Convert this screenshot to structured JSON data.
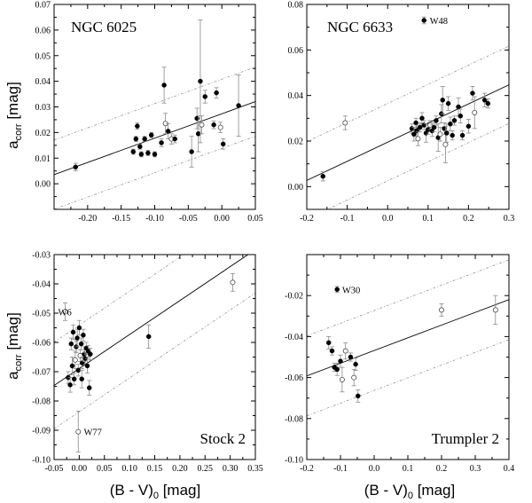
{
  "figure": {
    "ylabel_main": "a",
    "ylabel_sub": "corr",
    "ylabel_unit": " [mag]",
    "xlabel_main": "(B - V)",
    "xlabel_sub": "0",
    "xlabel_unit": " [mag]"
  },
  "chart_data": [
    {
      "type": "scatter",
      "title": "NGC 6025",
      "xlim": [
        -0.25,
        0.05
      ],
      "ylim": [
        -0.01,
        0.07
      ],
      "xticks": [
        -0.25,
        -0.2,
        -0.15,
        -0.1,
        -0.05,
        0.0,
        0.05
      ],
      "xtick_labels": [
        "",
        "-0.20",
        "-0.15",
        "-0.10",
        "-0.05",
        "0.00",
        "0.05"
      ],
      "yticks": [
        -0.01,
        0.0,
        0.01,
        0.02,
        0.03,
        0.04,
        0.05,
        0.06,
        0.07
      ],
      "ytick_labels": [
        "",
        "0.00",
        "0.01",
        "0.02",
        "0.03",
        "0.04",
        "0.05",
        "0.06",
        "0.07"
      ],
      "fit": {
        "slope": 0.095,
        "intercept": 0.0273
      },
      "band_halfwidth": 0.0135,
      "annotations": [],
      "points": [
        {
          "x": -0.218,
          "y": 0.0065,
          "err": 0.0015,
          "open": false
        },
        {
          "x": -0.132,
          "y": 0.0125,
          "err": 0.001,
          "open": false
        },
        {
          "x": -0.128,
          "y": 0.0175,
          "err": 0.001,
          "open": false
        },
        {
          "x": -0.126,
          "y": 0.0225,
          "err": 0.0012,
          "open": false
        },
        {
          "x": -0.122,
          "y": 0.0145,
          "err": 0.001,
          "open": false
        },
        {
          "x": -0.12,
          "y": 0.0115,
          "err": 0.001,
          "open": false
        },
        {
          "x": -0.115,
          "y": 0.0175,
          "err": 0.001,
          "open": false
        },
        {
          "x": -0.11,
          "y": 0.012,
          "err": 0.001,
          "open": false
        },
        {
          "x": -0.105,
          "y": 0.019,
          "err": 0.001,
          "open": false
        },
        {
          "x": -0.1,
          "y": 0.0115,
          "err": 0.001,
          "open": false
        },
        {
          "x": -0.09,
          "y": 0.016,
          "err": 0.0015,
          "open": false
        },
        {
          "x": -0.086,
          "y": 0.0385,
          "err": 0.007,
          "open": false
        },
        {
          "x": -0.084,
          "y": 0.0235,
          "err": 0.004,
          "open": true
        },
        {
          "x": -0.08,
          "y": 0.0205,
          "err": 0.003,
          "open": false
        },
        {
          "x": -0.075,
          "y": 0.0175,
          "err": 0.002,
          "open": true
        },
        {
          "x": -0.07,
          "y": 0.0175,
          "err": 0.0015,
          "open": false
        },
        {
          "x": -0.045,
          "y": 0.0125,
          "err": 0.006,
          "open": false
        },
        {
          "x": -0.037,
          "y": 0.0255,
          "err": 0.004,
          "open": false
        },
        {
          "x": -0.035,
          "y": 0.0195,
          "err": 0.007,
          "open": false
        },
        {
          "x": -0.032,
          "y": 0.04,
          "err": 0.024,
          "open": false
        },
        {
          "x": -0.03,
          "y": 0.023,
          "err": 0.0035,
          "open": true
        },
        {
          "x": -0.025,
          "y": 0.034,
          "err": 0.0025,
          "open": false
        },
        {
          "x": -0.012,
          "y": 0.023,
          "err": 0.0015,
          "open": false
        },
        {
          "x": -0.008,
          "y": 0.0355,
          "err": 0.002,
          "open": false
        },
        {
          "x": -0.002,
          "y": 0.022,
          "err": 0.002,
          "open": true
        },
        {
          "x": 0.002,
          "y": 0.0155,
          "err": 0.002,
          "open": false
        },
        {
          "x": 0.025,
          "y": 0.0305,
          "err": 0.012,
          "open": false
        }
      ]
    },
    {
      "type": "scatter",
      "title": "NGC 6633",
      "xlim": [
        -0.2,
        0.3
      ],
      "ylim": [
        -0.01,
        0.08
      ],
      "xticks": [
        -0.2,
        -0.1,
        0.0,
        0.1,
        0.2,
        0.3
      ],
      "xtick_labels": [
        "-0.2",
        "-0.1",
        "0.0",
        "0.1",
        "0.2",
        "0.3"
      ],
      "yticks": [
        0.0,
        0.02,
        0.04,
        0.06,
        0.08
      ],
      "ytick_labels": [
        "0.00",
        "0.02",
        "0.04",
        "0.06",
        "0.08"
      ],
      "fit": {
        "slope": 0.084,
        "intercept": 0.0195
      },
      "band_halfwidth": 0.017,
      "annotations": [
        {
          "text": "W48",
          "x": 0.104,
          "y": 0.073
        }
      ],
      "points": [
        {
          "x": -0.16,
          "y": 0.0045,
          "err": 0.002,
          "open": false
        },
        {
          "x": -0.105,
          "y": 0.028,
          "err": 0.003,
          "open": true
        },
        {
          "x": 0.09,
          "y": 0.073,
          "err": 0.0015,
          "open": false
        },
        {
          "x": 0.06,
          "y": 0.0255,
          "err": 0.002,
          "open": false
        },
        {
          "x": 0.065,
          "y": 0.023,
          "err": 0.003,
          "open": false
        },
        {
          "x": 0.07,
          "y": 0.028,
          "err": 0.002,
          "open": false
        },
        {
          "x": 0.072,
          "y": 0.0245,
          "err": 0.0025,
          "open": false
        },
        {
          "x": 0.075,
          "y": 0.021,
          "err": 0.003,
          "open": true
        },
        {
          "x": 0.08,
          "y": 0.026,
          "err": 0.002,
          "open": false
        },
        {
          "x": 0.085,
          "y": 0.03,
          "err": 0.0025,
          "open": false
        },
        {
          "x": 0.09,
          "y": 0.027,
          "err": 0.002,
          "open": false
        },
        {
          "x": 0.095,
          "y": 0.0235,
          "err": 0.004,
          "open": false
        },
        {
          "x": 0.1,
          "y": 0.025,
          "err": 0.002,
          "open": false
        },
        {
          "x": 0.105,
          "y": 0.027,
          "err": 0.002,
          "open": true
        },
        {
          "x": 0.11,
          "y": 0.0245,
          "err": 0.0025,
          "open": false
        },
        {
          "x": 0.115,
          "y": 0.026,
          "err": 0.002,
          "open": false
        },
        {
          "x": 0.12,
          "y": 0.029,
          "err": 0.002,
          "open": false
        },
        {
          "x": 0.125,
          "y": 0.0215,
          "err": 0.006,
          "open": false
        },
        {
          "x": 0.13,
          "y": 0.023,
          "err": 0.003,
          "open": true
        },
        {
          "x": 0.133,
          "y": 0.032,
          "err": 0.004,
          "open": false
        },
        {
          "x": 0.136,
          "y": 0.038,
          "err": 0.006,
          "open": false
        },
        {
          "x": 0.14,
          "y": 0.0255,
          "err": 0.0025,
          "open": false
        },
        {
          "x": 0.143,
          "y": 0.0185,
          "err": 0.008,
          "open": true
        },
        {
          "x": 0.146,
          "y": 0.0235,
          "err": 0.004,
          "open": false
        },
        {
          "x": 0.15,
          "y": 0.0365,
          "err": 0.003,
          "open": false
        },
        {
          "x": 0.155,
          "y": 0.0275,
          "err": 0.003,
          "open": false
        },
        {
          "x": 0.16,
          "y": 0.0225,
          "err": 0.002,
          "open": false
        },
        {
          "x": 0.165,
          "y": 0.029,
          "err": 0.002,
          "open": false
        },
        {
          "x": 0.175,
          "y": 0.035,
          "err": 0.004,
          "open": false
        },
        {
          "x": 0.18,
          "y": 0.031,
          "err": 0.003,
          "open": false
        },
        {
          "x": 0.185,
          "y": 0.0225,
          "err": 0.002,
          "open": false
        },
        {
          "x": 0.2,
          "y": 0.0265,
          "err": 0.003,
          "open": false
        },
        {
          "x": 0.21,
          "y": 0.041,
          "err": 0.003,
          "open": false
        },
        {
          "x": 0.215,
          "y": 0.0325,
          "err": 0.007,
          "open": true
        },
        {
          "x": 0.24,
          "y": 0.038,
          "err": 0.003,
          "open": false
        },
        {
          "x": 0.248,
          "y": 0.0365,
          "err": 0.002,
          "open": false
        }
      ]
    },
    {
      "type": "scatter",
      "title": "Stock 2",
      "xlim": [
        -0.05,
        0.35
      ],
      "ylim": [
        -0.1,
        -0.03
      ],
      "xticks": [
        -0.05,
        0.0,
        0.05,
        0.1,
        0.15,
        0.2,
        0.25,
        0.3,
        0.35
      ],
      "xtick_labels": [
        "-0.05",
        "0.00",
        "0.05",
        "0.10",
        "0.15",
        "0.20",
        "0.25",
        "0.30",
        "0.35"
      ],
      "yticks": [
        -0.1,
        -0.09,
        -0.08,
        -0.07,
        -0.06,
        -0.05,
        -0.04,
        -0.03
      ],
      "ytick_labels": [
        "-0.10",
        "-0.09",
        "-0.08",
        "-0.07",
        "-0.06",
        "-0.05",
        "-0.04",
        "-0.03"
      ],
      "fit": {
        "slope": 0.116,
        "intercept": -0.0689
      },
      "band_halfwidth": 0.0148,
      "annotations": [
        {
          "text": "W6",
          "x": -0.042,
          "y": -0.0495
        },
        {
          "text": "W77",
          "x": 0.009,
          "y": -0.0905
        }
      ],
      "points": [
        {
          "x": -0.028,
          "y": -0.0495,
          "err": 0.003,
          "open": true
        },
        {
          "x": -0.022,
          "y": -0.072,
          "err": 0.002,
          "open": false
        },
        {
          "x": -0.018,
          "y": -0.0745,
          "err": 0.0025,
          "open": false
        },
        {
          "x": -0.016,
          "y": -0.0605,
          "err": 0.002,
          "open": false
        },
        {
          "x": -0.014,
          "y": -0.068,
          "err": 0.003,
          "open": false
        },
        {
          "x": -0.012,
          "y": -0.0565,
          "err": 0.0025,
          "open": false
        },
        {
          "x": -0.01,
          "y": -0.0725,
          "err": 0.002,
          "open": false
        },
        {
          "x": -0.008,
          "y": -0.066,
          "err": 0.003,
          "open": true
        },
        {
          "x": -0.006,
          "y": -0.0615,
          "err": 0.002,
          "open": false
        },
        {
          "x": -0.004,
          "y": -0.0585,
          "err": 0.003,
          "open": false
        },
        {
          "x": -0.002,
          "y": -0.0695,
          "err": 0.002,
          "open": false
        },
        {
          "x": -0.002,
          "y": -0.0905,
          "err": 0.007,
          "open": true
        },
        {
          "x": 0.0,
          "y": -0.055,
          "err": 0.0025,
          "open": false
        },
        {
          "x": 0.002,
          "y": -0.0645,
          "err": 0.002,
          "open": true
        },
        {
          "x": 0.004,
          "y": -0.0605,
          "err": 0.002,
          "open": false
        },
        {
          "x": 0.005,
          "y": -0.0725,
          "err": 0.003,
          "open": false
        },
        {
          "x": 0.006,
          "y": -0.067,
          "err": 0.002,
          "open": false
        },
        {
          "x": 0.008,
          "y": -0.0575,
          "err": 0.002,
          "open": false
        },
        {
          "x": 0.01,
          "y": -0.064,
          "err": 0.0025,
          "open": false
        },
        {
          "x": 0.012,
          "y": -0.0655,
          "err": 0.002,
          "open": false
        },
        {
          "x": 0.014,
          "y": -0.062,
          "err": 0.002,
          "open": false
        },
        {
          "x": 0.016,
          "y": -0.068,
          "err": 0.0025,
          "open": false
        },
        {
          "x": 0.018,
          "y": -0.063,
          "err": 0.002,
          "open": false
        },
        {
          "x": 0.02,
          "y": -0.0755,
          "err": 0.0025,
          "open": false
        },
        {
          "x": 0.022,
          "y": -0.064,
          "err": 0.002,
          "open": false
        },
        {
          "x": 0.138,
          "y": -0.058,
          "err": 0.004,
          "open": false
        },
        {
          "x": 0.305,
          "y": -0.0395,
          "err": 0.003,
          "open": true
        }
      ]
    },
    {
      "type": "scatter",
      "title": "Trumpler 2",
      "xlim": [
        -0.2,
        0.4
      ],
      "ylim": [
        -0.1,
        0.0
      ],
      "xticks": [
        -0.2,
        -0.1,
        0.0,
        0.1,
        0.2,
        0.3,
        0.4
      ],
      "xtick_labels": [
        "-0.2",
        "-0.1",
        "0.0",
        "0.1",
        "0.2",
        "0.3",
        "0.4"
      ],
      "yticks": [
        -0.1,
        -0.08,
        -0.06,
        -0.04,
        -0.02,
        0.0
      ],
      "ytick_labels": [
        "-0.10",
        "-0.08",
        "-0.06",
        "-0.04",
        "-0.02",
        ""
      ],
      "fit": {
        "slope": 0.062,
        "intercept": -0.0468
      },
      "band_halfwidth": 0.0195,
      "annotations": [
        {
          "text": "W30",
          "x": -0.095,
          "y": -0.017
        }
      ],
      "points": [
        {
          "x": -0.11,
          "y": -0.017,
          "err": 0.0015,
          "open": false
        },
        {
          "x": -0.135,
          "y": -0.043,
          "err": 0.003,
          "open": false
        },
        {
          "x": -0.125,
          "y": -0.047,
          "err": 0.002,
          "open": false
        },
        {
          "x": -0.118,
          "y": -0.055,
          "err": 0.002,
          "open": false
        },
        {
          "x": -0.11,
          "y": -0.056,
          "err": 0.003,
          "open": false
        },
        {
          "x": -0.1,
          "y": -0.052,
          "err": 0.003,
          "open": false
        },
        {
          "x": -0.095,
          "y": -0.061,
          "err": 0.006,
          "open": true
        },
        {
          "x": -0.085,
          "y": -0.047,
          "err": 0.004,
          "open": true
        },
        {
          "x": -0.07,
          "y": -0.05,
          "err": 0.002,
          "open": false
        },
        {
          "x": -0.06,
          "y": -0.06,
          "err": 0.004,
          "open": true
        },
        {
          "x": -0.055,
          "y": -0.0535,
          "err": 0.003,
          "open": false
        },
        {
          "x": -0.048,
          "y": -0.069,
          "err": 0.003,
          "open": false
        },
        {
          "x": 0.2,
          "y": -0.027,
          "err": 0.003,
          "open": true
        },
        {
          "x": 0.36,
          "y": -0.027,
          "err": 0.007,
          "open": true
        }
      ]
    }
  ]
}
